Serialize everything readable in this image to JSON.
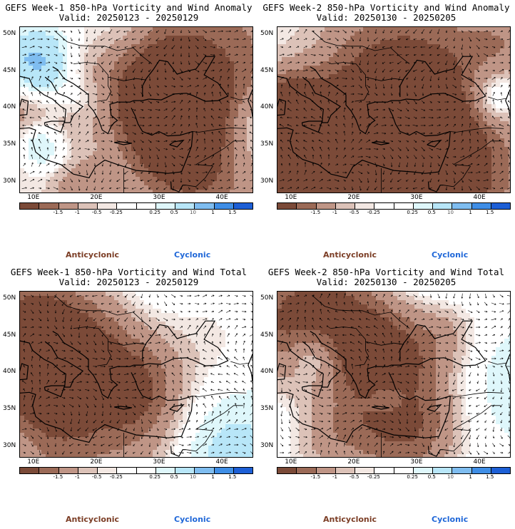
{
  "panels": [
    {
      "id": "w1-anom",
      "title_line1": "GEFS Week-1 850-hPa Vorticity and Wind Anomaly",
      "title_line2": "Valid: 20250123 - 20250129",
      "seed": 11,
      "bias": -0.45
    },
    {
      "id": "w2-anom",
      "title_line1": "GEFS Week-2 850-hPa Vorticity and Wind Anomaly",
      "title_line2": "Valid: 20250130 - 20250205",
      "seed": 23,
      "bias": -0.35
    },
    {
      "id": "w1-total",
      "title_line1": "GEFS Week-1 850-hPa Vorticity and Wind Total",
      "title_line2": "Valid: 20250123 - 20250129",
      "seed": 37,
      "bias": 0.15
    },
    {
      "id": "w2-total",
      "title_line1": "GEFS Week-2 850-hPa Vorticity and Wind Total",
      "title_line2": "Valid: 20250130 - 20250205",
      "seed": 53,
      "bias": 0.3
    }
  ],
  "lat_labels": [
    "50N",
    "45N",
    "40N",
    "35N",
    "30N"
  ],
  "lon_labels": [
    "10E",
    "20E",
    "30E",
    "40E"
  ],
  "colorbar": {
    "colors": [
      "#7b4a38",
      "#9b6a57",
      "#bf9586",
      "#dcc2b8",
      "#f3e8e3",
      "#ffffff",
      "#ffffff",
      "#dff7fb",
      "#b8e6f8",
      "#7fbdf0",
      "#3f8ee6",
      "#1d5fd6"
    ],
    "ticks": [
      "-1.5",
      "-1",
      "-0.5",
      "-0.25",
      "0.25",
      "0.5",
      "1",
      "1.5"
    ],
    "scale_note": "10"
  },
  "legend": {
    "anticyclonic": "Anticyclonic",
    "cyclonic": "Cyclonic"
  }
}
